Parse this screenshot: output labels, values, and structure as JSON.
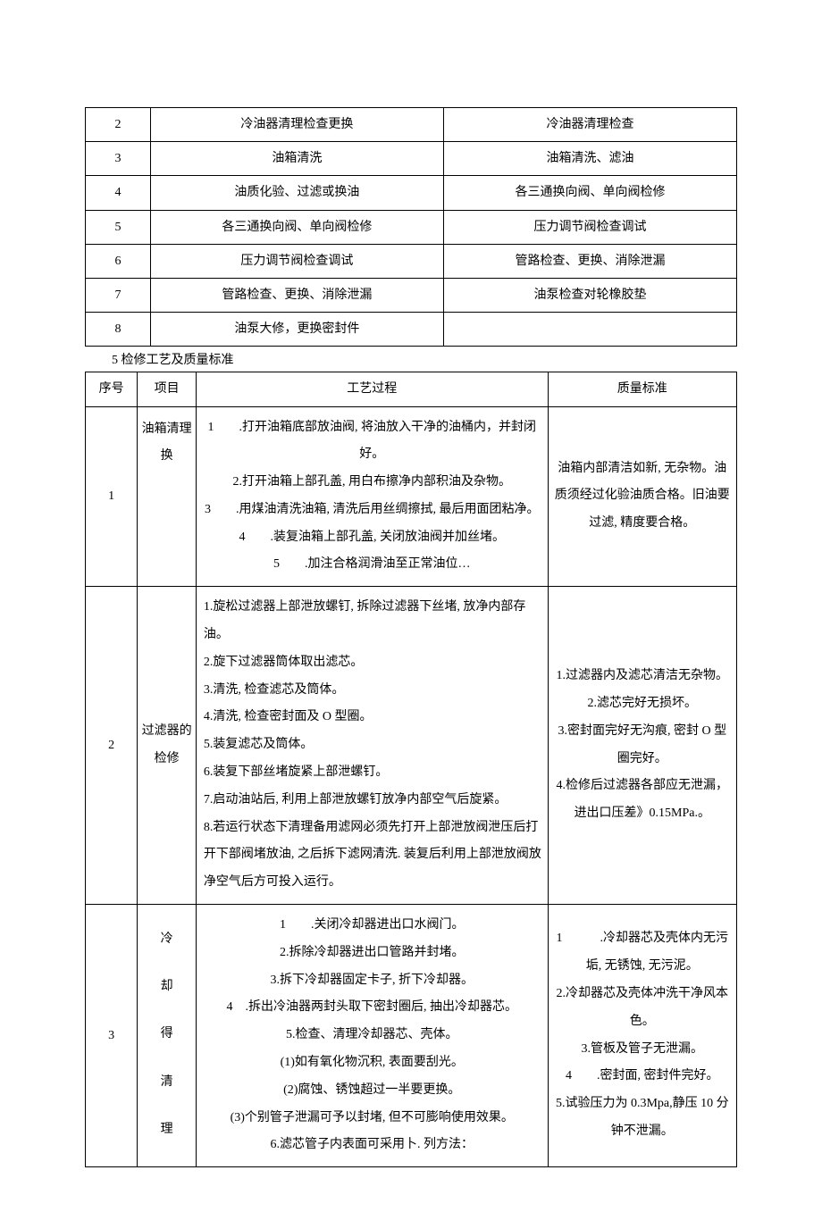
{
  "table1": {
    "rows": [
      {
        "num": "2",
        "col_a": "冷油器清理检查更换",
        "col_b": "冷油器清理检查"
      },
      {
        "num": "3",
        "col_a": "油箱清洗",
        "col_b": "油箱清洗、滤油"
      },
      {
        "num": "4",
        "col_a": "油质化验、过滤或换油",
        "col_b": "各三通换向阀、单向阀检修"
      },
      {
        "num": "5",
        "col_a": "各三通换向阀、单向阀检修",
        "col_b": "压力调节阀检查调试"
      },
      {
        "num": "6",
        "col_a": "压力调节阀检查调试",
        "col_b": "管路检查、更换、消除泄漏"
      },
      {
        "num": "7",
        "col_a": "管路检查、更换、消除泄漏",
        "col_b": "油泵检查对轮橡胶垫"
      },
      {
        "num": "8",
        "col_a": "油泵大修，更换密封件",
        "col_b": ""
      }
    ]
  },
  "section_heading": "5 检修工艺及质量标准",
  "table2": {
    "headers": {
      "num": "序号",
      "proj": "项目",
      "process": "工艺过程",
      "quality": "质量标准"
    },
    "rows": [
      {
        "num": "1",
        "proj": "油箱清理换",
        "process": [
          "1　　.打开油箱底部放油阀, 将油放入干净的油桶内，并封闭好。",
          "2.打开油箱上部孔盖, 用白布擦净内部积油及杂物。",
          "3　　.用煤油清洗油箱, 清洗后用丝绸擦拭, 最后用面团粘净。",
          "4　　.装复油箱上部孔盖, 关闭放油阀并加丝堵。",
          "5　　.加注合格润滑油至正常油位…"
        ],
        "quality": "油箱内部清洁如新, 无杂物。油质须经过化验油质合格。旧油要过滤, 精度要合格。"
      },
      {
        "num": "2",
        "proj": "过滤器的检修",
        "process": [
          "1.旋松过滤器上部泄放螺钉, 拆除过滤器下丝堵, 放净内部存油。",
          "2.旋下过滤器筒体取出滤芯。",
          "3.清洗, 检查滤芯及筒体。",
          "4.清洗, 检查密封面及 O 型圈。",
          "5.装复滤芯及筒体。",
          "6.装复下部丝堵旋紧上部泄螺钉。",
          "7.启动油站后, 利用上部泄放螺钉放净内部空气后旋紧。",
          "8.若运行状态下清理备用滤网必须先打开上部泄放阀泄压后打开下部阀堵放油, 之后拆下滤网清洗. 装复后利用上部泄放阀放净空气后方可投入运行。"
        ],
        "quality": [
          "1.过滤器内及滤芯清洁无杂物。",
          "2.滤芯完好无损坏。",
          "3.密封面完好无沟痕, 密封 O 型圈完好。",
          "4.检修后过滤器各部应无泄漏，进出口压差》0.15MPa.。"
        ]
      },
      {
        "num": "3",
        "proj": "冷　却　得　清　理",
        "process": [
          "1　　.关闭冷却器进出口水阀门。",
          "2.拆除冷却器进出口管路并封堵。",
          "3.拆下冷却器固定卡子, 折下冷却器。",
          "4　.拆出冷油器两封头取下密封圈后, 抽出冷却器芯。",
          "5.检查、清理冷却器芯、壳体。",
          "(1)如有氧化物沉积, 表面要刮光。",
          "(2)腐蚀、锈蚀超过一半要更换。",
          "(3)个别管子泄漏可予以封堵, 但不可膨响使用效果。",
          "6.滤芯管子内表面可采用卜. 列方法："
        ],
        "quality": [
          "1　　　.冷却器芯及壳体内无污垢, 无锈蚀, 无污泥。",
          "2.冷却器芯及壳体冲洗干净风本色。",
          "3.管板及管子无泄漏。",
          "4　　.密封面, 密封件完好。",
          "5.试验压力为 0.3Mpa,静压 10 分钟不泄漏。"
        ]
      }
    ]
  }
}
